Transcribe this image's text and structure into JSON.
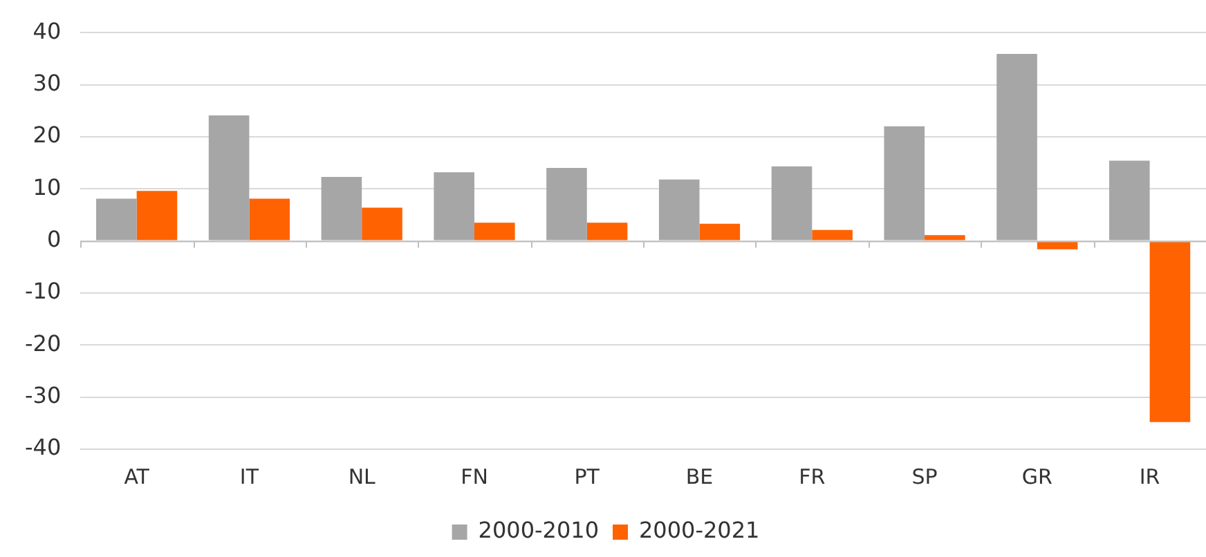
{
  "chart_data": {
    "type": "bar",
    "categories": [
      "AT",
      "IT",
      "NL",
      "FN",
      "PT",
      "BE",
      "FR",
      "SP",
      "GR",
      "IR"
    ],
    "series": [
      {
        "name": "2000-2010",
        "color": "#a6a6a6",
        "values": [
          8.1,
          24.1,
          12.3,
          13.2,
          14,
          11.8,
          14.3,
          22,
          35.9,
          15.4
        ]
      },
      {
        "name": "2000-2021",
        "color": "#ff6200",
        "values": [
          9.6,
          8.1,
          6.4,
          3.5,
          3.5,
          3.3,
          2.1,
          1.1,
          -1.6,
          -34.8
        ]
      }
    ],
    "ylim": [
      -40,
      40
    ],
    "yticks": [
      -40,
      -30,
      -20,
      -10,
      0,
      10,
      20,
      30,
      40
    ],
    "grid": "y",
    "legend": "bottom"
  }
}
